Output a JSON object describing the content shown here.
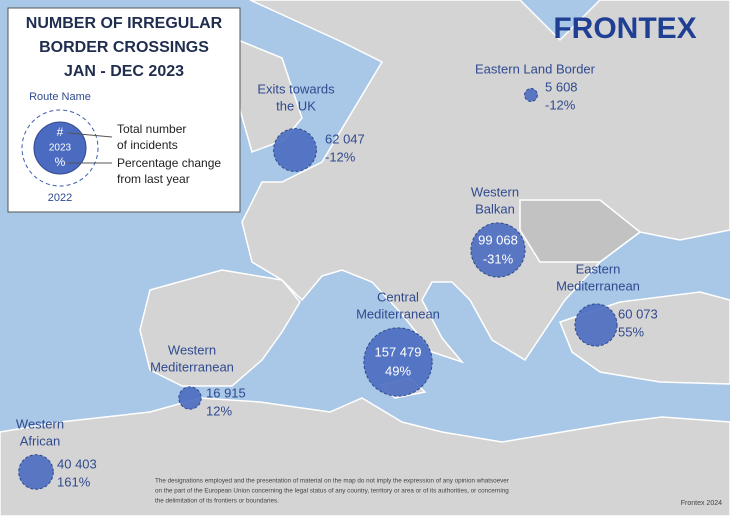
{
  "header": {
    "title_lines": [
      "NUMBER OF IRREGULAR",
      "BORDER CROSSINGS",
      "JAN - DEC 2023"
    ],
    "logo": "FRONTEX"
  },
  "legend": {
    "route_name": "Route Name",
    "count_symbol": "#",
    "year_current": "2023",
    "change_symbol": "%",
    "year_previous": "2022",
    "count_text": [
      "Total number",
      "of incidents"
    ],
    "change_text": [
      "Percentage change",
      "from last year"
    ]
  },
  "routes": [
    {
      "name": [
        "Exits towards",
        "the UK"
      ],
      "count": 62047,
      "count_label": "62 047",
      "change": "-12%"
    },
    {
      "name": [
        "Eastern Land Border"
      ],
      "count": 5608,
      "count_label": "5 608",
      "change": "-12%"
    },
    {
      "name": [
        "Western",
        "Balkan"
      ],
      "count": 99068,
      "count_label": "99 068",
      "change": "-31%"
    },
    {
      "name": [
        "Eastern",
        "Mediterranean"
      ],
      "count": 60073,
      "count_label": "60 073",
      "change": "55%"
    },
    {
      "name": [
        "Central",
        "Mediterranean"
      ],
      "count": 157479,
      "count_label": "157 479",
      "change": "49%"
    },
    {
      "name": [
        "Western",
        "Mediterranean"
      ],
      "count": 16915,
      "count_label": "16 915",
      "change": "12%"
    },
    {
      "name": [
        "Western",
        "African"
      ],
      "count": 40403,
      "count_label": "40 403",
      "change": "161%"
    }
  ],
  "footer": {
    "disclaimer": [
      "The designations employed and the presentation of material on the map do not imply the expression of any opinion whatsoever",
      "on the part of the European Union concerning the legal status of any country, territory or area or of its authorities, or concerning",
      "the delimitation of its frontiers or boundaries."
    ],
    "credit": "Frontex 2024"
  }
}
